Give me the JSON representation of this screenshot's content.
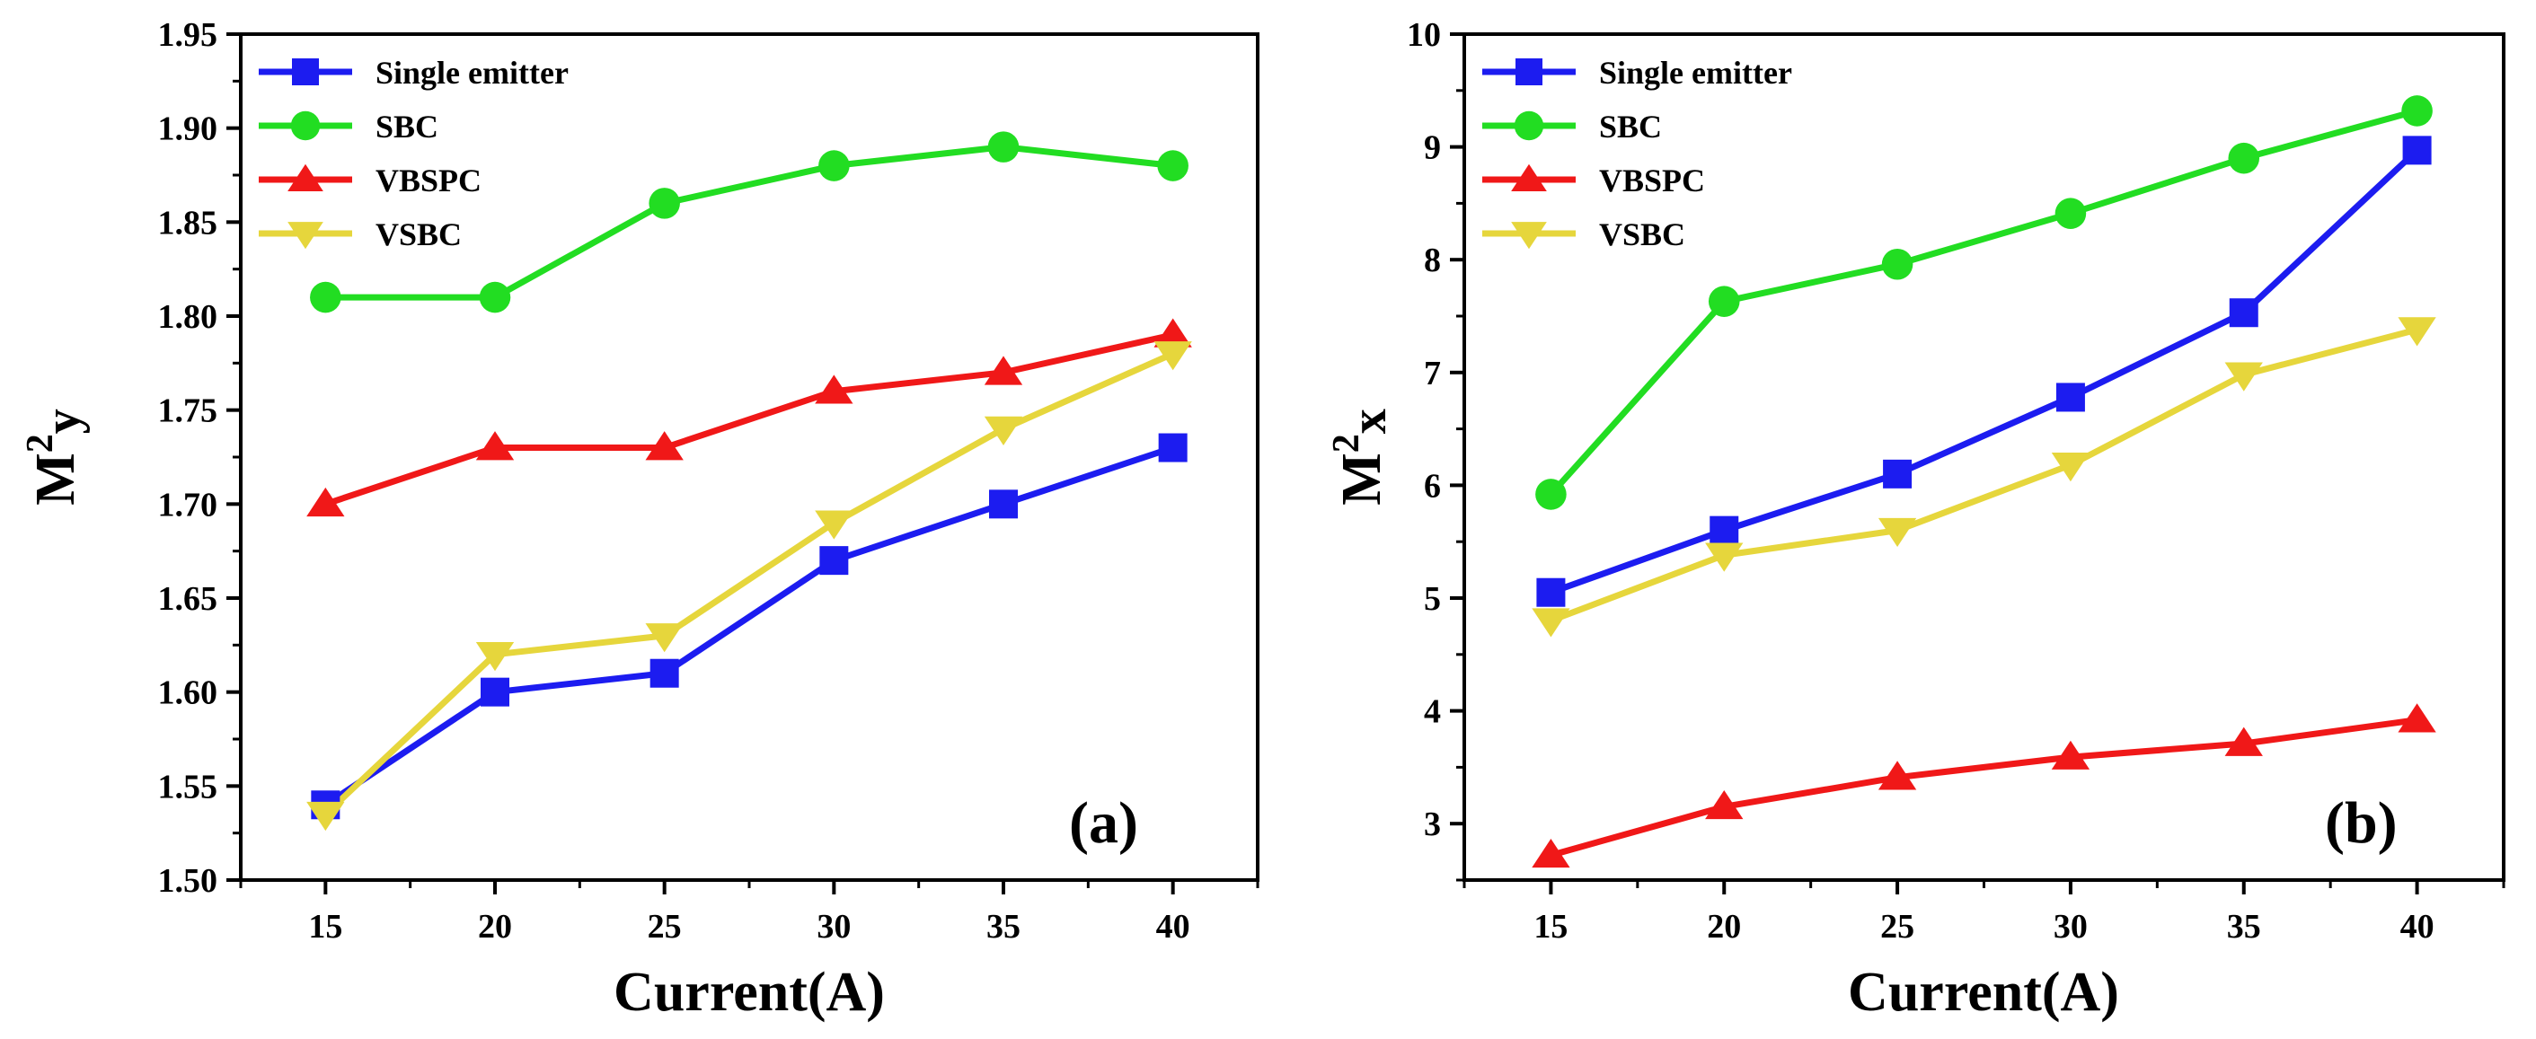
{
  "chart_data": [
    {
      "type": "line",
      "panel_label": "(a)",
      "xlabel": "Current(A)",
      "ylabel": {
        "base": "M",
        "sup": "2",
        "sub": "y"
      },
      "x": [
        15,
        20,
        25,
        30,
        35,
        40
      ],
      "xticks": [
        "15",
        "20",
        "25",
        "30",
        "35",
        "40"
      ],
      "xlim": [
        12.5,
        42.5
      ],
      "ylim": [
        1.5,
        1.95
      ],
      "yticks": [
        "1.50",
        "1.55",
        "1.60",
        "1.65",
        "1.70",
        "1.75",
        "1.80",
        "1.85",
        "1.90",
        "1.95"
      ],
      "legend_position": "top-left",
      "series": [
        {
          "name": "Single emitter",
          "color": "#1c1cf0",
          "marker": "square",
          "values": [
            1.54,
            1.6,
            1.61,
            1.67,
            1.7,
            1.73
          ]
        },
        {
          "name": "SBC",
          "color": "#22dd22",
          "marker": "circle",
          "values": [
            1.81,
            1.81,
            1.86,
            1.88,
            1.89,
            1.88
          ]
        },
        {
          "name": "VBSPC",
          "color": "#f01818",
          "marker": "triangle-up",
          "values": [
            1.7,
            1.73,
            1.73,
            1.76,
            1.77,
            1.79
          ]
        },
        {
          "name": "VSBC",
          "color": "#e6d63c",
          "marker": "triangle-down",
          "values": [
            1.535,
            1.62,
            1.63,
            1.69,
            1.74,
            1.78
          ]
        }
      ]
    },
    {
      "type": "line",
      "panel_label": "(b)",
      "xlabel": "Current(A)",
      "ylabel": {
        "base": "M",
        "sup": "2",
        "sub": "x"
      },
      "x": [
        15,
        20,
        25,
        30,
        35,
        40
      ],
      "xticks": [
        "15",
        "20",
        "25",
        "30",
        "35",
        "40"
      ],
      "xlim": [
        12.5,
        42.5
      ],
      "ylim": [
        2.5,
        10
      ],
      "yticks": [
        "3",
        "4",
        "5",
        "6",
        "7",
        "8",
        "9",
        "10"
      ],
      "legend_position": "top-left",
      "series": [
        {
          "name": "Single emitter",
          "color": "#1c1cf0",
          "marker": "square",
          "values": [
            5.05,
            5.6,
            6.1,
            6.78,
            7.53,
            8.97
          ]
        },
        {
          "name": "SBC",
          "color": "#22dd22",
          "marker": "circle",
          "values": [
            5.92,
            7.63,
            7.96,
            8.41,
            8.9,
            9.32
          ]
        },
        {
          "name": "VBSPC",
          "color": "#f01818",
          "marker": "triangle-up",
          "values": [
            2.72,
            3.15,
            3.41,
            3.59,
            3.71,
            3.92
          ]
        },
        {
          "name": "VSBC",
          "color": "#e6d63c",
          "marker": "triangle-down",
          "values": [
            4.8,
            5.38,
            5.6,
            6.18,
            6.98,
            7.38
          ]
        }
      ]
    }
  ]
}
